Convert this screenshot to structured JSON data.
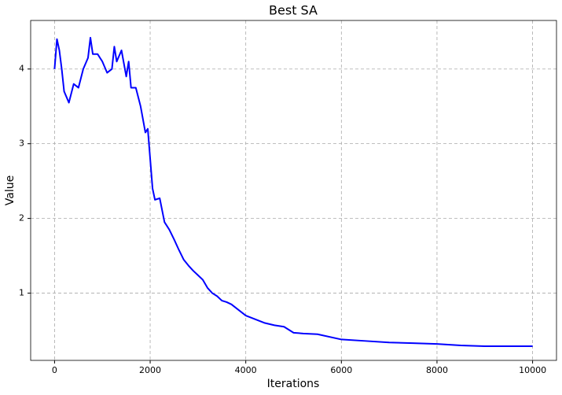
{
  "chart_data": {
    "type": "line",
    "title": "Best SA",
    "x_label": "Iterations",
    "y_label": "Value",
    "x": [
      0,
      50,
      100,
      150,
      200,
      300,
      400,
      500,
      600,
      700,
      750,
      800,
      900,
      1000,
      1100,
      1200,
      1250,
      1300,
      1400,
      1500,
      1550,
      1600,
      1700,
      1800,
      1900,
      1950,
      2000,
      2050,
      2100,
      2200,
      2300,
      2400,
      2500,
      2600,
      2700,
      2800,
      2900,
      3000,
      3100,
      3200,
      3300,
      3400,
      3500,
      3600,
      3700,
      3800,
      3900,
      4000,
      4200,
      4400,
      4600,
      4800,
      5000,
      5200,
      5500,
      6000,
      6500,
      7000,
      7500,
      8000,
      8500,
      9000,
      9500,
      10000
    ],
    "series": [
      {
        "name": "Best SA",
        "color": "#0000ff",
        "values": [
          4.0,
          4.4,
          4.25,
          4.0,
          3.7,
          3.55,
          3.8,
          3.75,
          4.0,
          4.15,
          4.42,
          4.2,
          4.2,
          4.1,
          3.95,
          4.0,
          4.3,
          4.1,
          4.25,
          3.9,
          4.1,
          3.75,
          3.75,
          3.5,
          3.15,
          3.2,
          2.8,
          2.4,
          2.25,
          2.27,
          1.95,
          1.85,
          1.72,
          1.58,
          1.45,
          1.37,
          1.3,
          1.24,
          1.18,
          1.07,
          1.0,
          0.96,
          0.9,
          0.88,
          0.85,
          0.8,
          0.75,
          0.7,
          0.65,
          0.6,
          0.57,
          0.55,
          0.47,
          0.46,
          0.45,
          0.38,
          0.36,
          0.34,
          0.33,
          0.32,
          0.3,
          0.29,
          0.29,
          0.29
        ]
      }
    ],
    "xlim": [
      -500,
      10500
    ],
    "ylim": [
      0.1,
      4.65
    ],
    "xticks": [
      0,
      2000,
      4000,
      6000,
      8000,
      10000
    ],
    "yticks": [
      1,
      2,
      3,
      4
    ],
    "grid": true
  }
}
